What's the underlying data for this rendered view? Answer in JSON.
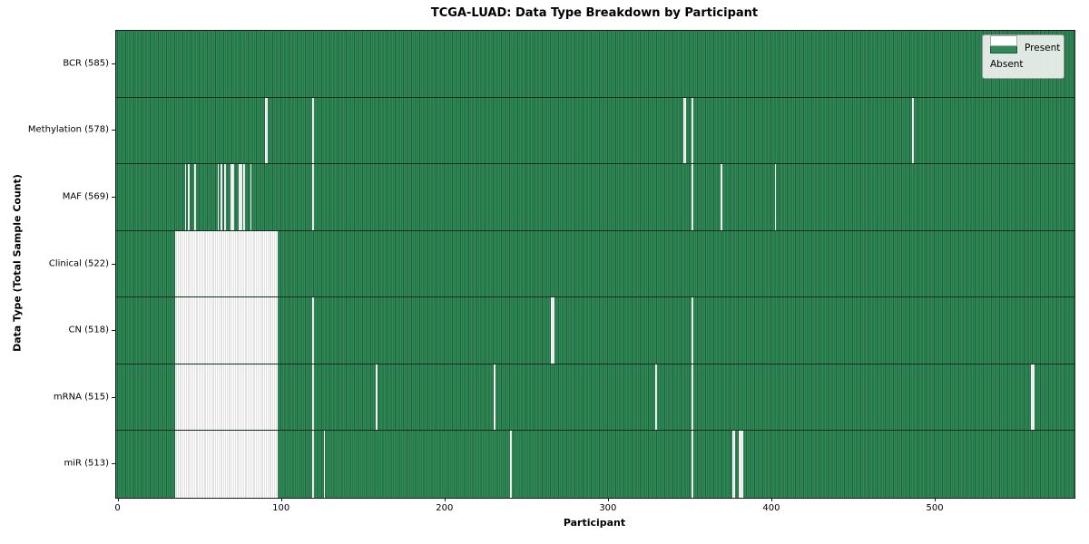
{
  "title": "TCGA-LUAD: Data Type Breakdown by Participant",
  "xlabel": "Participant",
  "ylabel": "Data Type (Total Sample Count)",
  "legend": {
    "present_label": "Present",
    "absent_label": "Absent"
  },
  "colors": {
    "present": "#2e8b57",
    "present_edge": "#215f3c",
    "absent": "#ffffff",
    "absent_edge": "#c6c6c6"
  },
  "chart_data": {
    "type": "heatmap",
    "title": "TCGA-LUAD: Data Type Breakdown by Participant",
    "xlabel": "Participant",
    "ylabel": "Data Type (Total Sample Count)",
    "legend_entries": [
      "Present",
      "Absent"
    ],
    "legend_position": "upper right",
    "total_participants": 585,
    "x_ticks": [
      0,
      100,
      200,
      300,
      400,
      500
    ],
    "x_range": [
      0,
      585
    ],
    "rows": [
      {
        "label": "BCR (585)",
        "data_type": "BCR",
        "present_count": 585,
        "absent_ranges": []
      },
      {
        "label": "Methylation (578)",
        "data_type": "Methylation",
        "present_count": 578,
        "absent_ranges": [
          [
            90,
            91
          ],
          [
            119,
            119
          ],
          [
            346,
            347
          ],
          [
            351,
            351
          ],
          [
            486,
            486
          ]
        ]
      },
      {
        "label": "MAF (569)",
        "data_type": "MAF",
        "present_count": 569,
        "absent_ranges": [
          [
            41,
            41
          ],
          [
            43,
            43
          ],
          [
            47,
            47
          ],
          [
            61,
            61
          ],
          [
            63,
            63
          ],
          [
            65,
            65
          ],
          [
            69,
            70
          ],
          [
            74,
            75
          ],
          [
            77,
            77
          ],
          [
            81,
            81
          ],
          [
            119,
            119
          ],
          [
            351,
            351
          ],
          [
            369,
            369
          ],
          [
            402,
            402
          ]
        ]
      },
      {
        "label": "Clinical (522)",
        "data_type": "Clinical",
        "present_count": 522,
        "absent_ranges": [
          [
            35,
            97
          ]
        ]
      },
      {
        "label": "CN (518)",
        "data_type": "CN",
        "present_count": 518,
        "absent_ranges": [
          [
            35,
            97
          ],
          [
            119,
            119
          ],
          [
            265,
            266
          ],
          [
            351,
            351
          ]
        ]
      },
      {
        "label": "mRNA (515)",
        "data_type": "mRNA",
        "present_count": 515,
        "absent_ranges": [
          [
            35,
            97
          ],
          [
            119,
            119
          ],
          [
            158,
            158
          ],
          [
            230,
            230
          ],
          [
            329,
            329
          ],
          [
            351,
            351
          ],
          [
            559,
            560
          ]
        ]
      },
      {
        "label": "miR (513)",
        "data_type": "miR",
        "present_count": 513,
        "absent_ranges": [
          [
            35,
            97
          ],
          [
            119,
            119
          ],
          [
            126,
            126
          ],
          [
            240,
            240
          ],
          [
            351,
            351
          ],
          [
            376,
            377
          ],
          [
            380,
            382
          ]
        ]
      }
    ]
  }
}
